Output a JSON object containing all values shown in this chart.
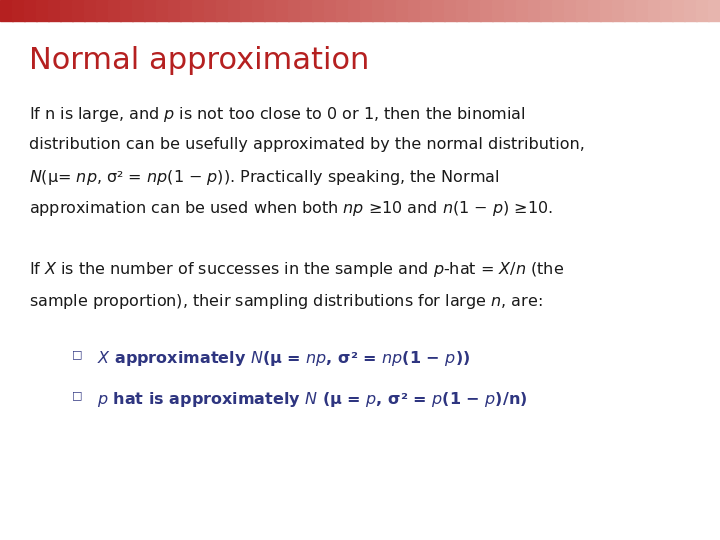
{
  "title": "Normal approximation",
  "title_color": "#b52020",
  "title_fontsize": 22,
  "background_color": "#ffffff",
  "header_bar_color1": "#b52020",
  "header_bar_color2": "#e8b8b0",
  "body_color": "#1a1a1a",
  "bullet_color": "#2e3580",
  "body_fontsize": 11.5,
  "bullet_fontsize": 11.5,
  "paragraph1_lines": [
    "If n is large, and $p$ is not too close to 0 or 1, then the binomial",
    "distribution can be usefully approximated by the normal distribution,",
    "$N$(μ= $np$, σ² = $np$(1 − $p$)). Practically speaking, the Normal",
    "approximation can be used when both $np$ ≥10 and $n$(1 − $p$) ≥10."
  ],
  "paragraph2_lines": [
    "If $X$ is the number of successes in the sample and $p$-hat = $X/n$ (the",
    "sample proportion), their sampling distributions for large $n$, are:"
  ],
  "bullet1": "$X$ approximately $N$(μ = $np$, σ² = $np$(1 − $p$))",
  "bullet2": "$p$ hat is approximately $N$ (μ = $p$, σ² = $p$(1 − $p$)/n)"
}
